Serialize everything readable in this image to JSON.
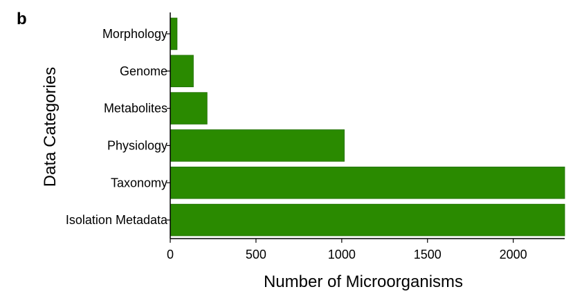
{
  "panel_label": "b",
  "chart_data": {
    "type": "bar",
    "orientation": "horizontal",
    "categories": [
      "Isolation Metadata",
      "Taxonomy",
      "Physiology",
      "Metabolites",
      "Genome",
      "Morphology"
    ],
    "values": [
      2300,
      2300,
      1015,
      215,
      135,
      40
    ],
    "xlabel": "Number of Microorganisms",
    "ylabel": "Data Categories",
    "xlim": [
      0,
      2300
    ],
    "xticks": [
      0,
      500,
      1000,
      1500,
      2000
    ],
    "bar_color": "#2a8a00",
    "grid": false,
    "legend": "none"
  }
}
